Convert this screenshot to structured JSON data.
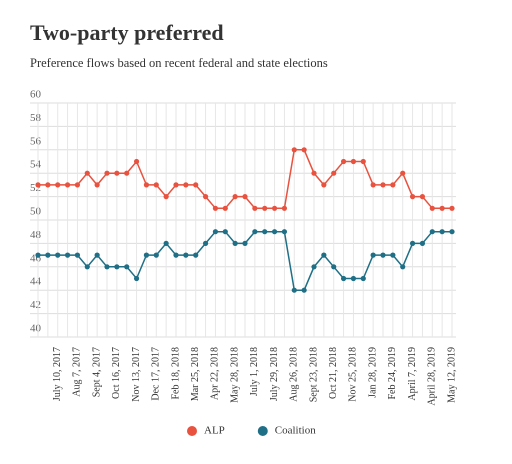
{
  "chart_data": {
    "type": "line",
    "title": "Two-party preferred",
    "subtitle": "Preference flows based on recent federal and state elections",
    "categories": [
      null,
      null,
      "July 10, 2017",
      null,
      "Aug 7, 2017",
      null,
      "Sept 4, 2017",
      null,
      "Oct 16, 2017",
      null,
      "Nov 13, 2017",
      null,
      "Dec 17, 2017",
      null,
      "Feb 18, 2018",
      null,
      "Mar 25, 2018",
      null,
      "Apr 22, 2018",
      null,
      "May 28, 2018",
      null,
      "July 1, 2018",
      null,
      "July 29, 2018",
      null,
      "Aug 26, 2018",
      null,
      "Sept 23, 2018",
      null,
      "Oct 21, 2018",
      null,
      "Nov 25, 2018",
      null,
      "Jan 28, 2019",
      null,
      "Feb 24, 2019",
      null,
      "April 7, 2019",
      null,
      "April 28, 2019",
      null,
      "May 12, 2019"
    ],
    "series": [
      {
        "name": "ALP",
        "color": "#e8523f",
        "values": [
          53,
          53,
          53,
          53,
          53,
          54,
          53,
          54,
          54,
          54,
          55,
          53,
          53,
          52,
          53,
          53,
          53,
          52,
          51,
          51,
          52,
          52,
          51,
          51,
          51,
          51,
          56,
          56,
          54,
          53,
          54,
          55,
          55,
          55,
          53,
          53,
          53,
          54,
          52,
          52,
          51,
          51,
          51
        ]
      },
      {
        "name": "Coalition",
        "color": "#1f6f86",
        "values": [
          47,
          47,
          47,
          47,
          47,
          46,
          47,
          46,
          46,
          46,
          45,
          47,
          47,
          48,
          47,
          47,
          47,
          48,
          49,
          49,
          48,
          48,
          49,
          49,
          49,
          49,
          44,
          44,
          46,
          47,
          46,
          45,
          45,
          45,
          47,
          47,
          47,
          46,
          48,
          48,
          49,
          49,
          49
        ]
      }
    ],
    "ylim": [
      40,
      60
    ],
    "yticks": [
      40,
      42,
      44,
      46,
      48,
      50,
      52,
      54,
      56,
      58,
      60
    ],
    "grid": true,
    "legend": "bottom"
  }
}
